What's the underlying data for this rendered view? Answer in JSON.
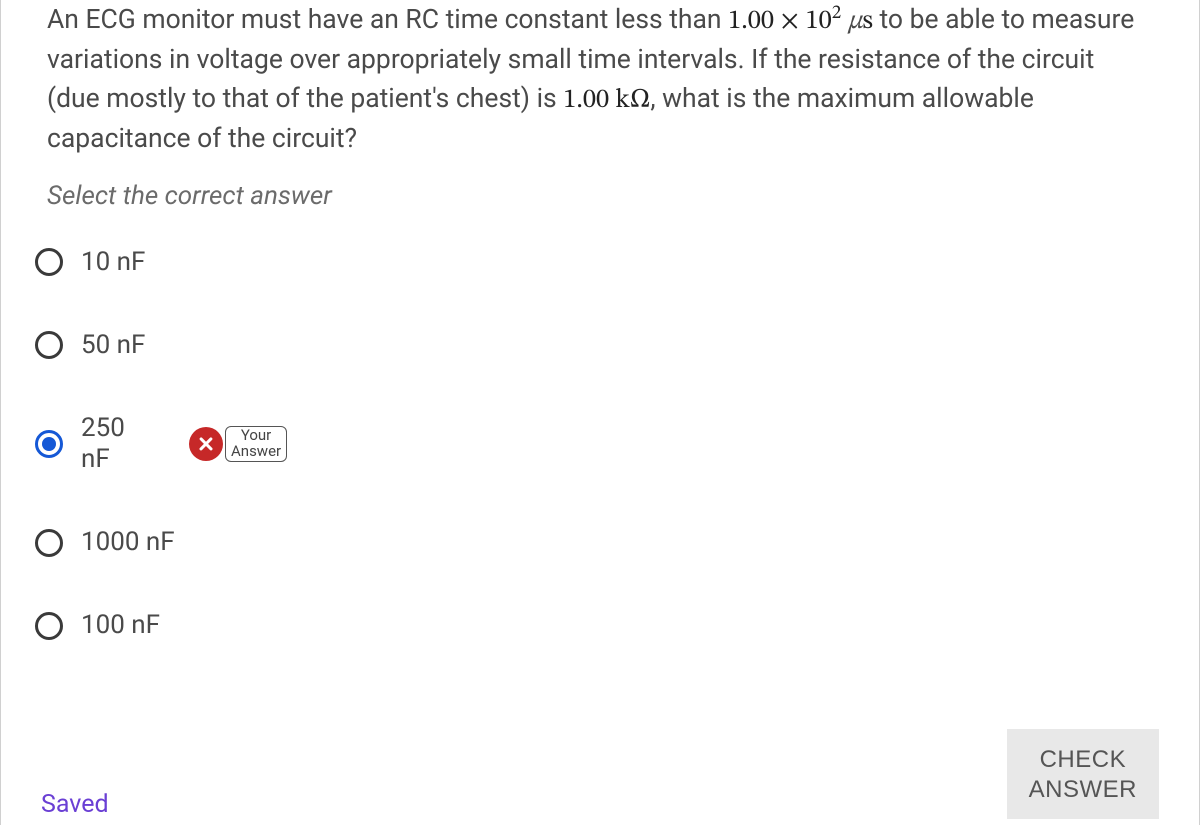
{
  "question": {
    "pre": "An ECG monitor must have an RC time constant less than ",
    "value1_base": "1.00 × 10",
    "value1_exp": "2",
    "value1_unit_mu": "μ",
    "value1_unit_s": "s",
    "mid": " to be able to measure variations in voltage over appropriately small time intervals. If the resistance of the circuit (due mostly to that of the patient's chest) is ",
    "value2": "1.00 kΩ",
    "post": ", what is the maximum allowable capacitance of the circuit?"
  },
  "instruction": "Select the correct answer",
  "options": [
    {
      "label": "10 nF",
      "selected": false
    },
    {
      "label": "50 nF",
      "selected": false
    },
    {
      "label": "250 nF",
      "selected": true,
      "incorrect": true
    },
    {
      "label": "1000 nF",
      "selected": false
    },
    {
      "label": "100 nF",
      "selected": false
    }
  ],
  "badge": {
    "line1": "Your",
    "line2": "Answer"
  },
  "footer": {
    "saved": "Saved",
    "check_line1": "CHECK",
    "check_line2": "ANSWER"
  },
  "colors": {
    "text": "#4a4a4a",
    "instruction": "#6b6b6b",
    "selected": "#1558d6",
    "incorrect": "#c62828",
    "saved": "#6a3fd4",
    "button_bg": "#e8e8e8"
  }
}
